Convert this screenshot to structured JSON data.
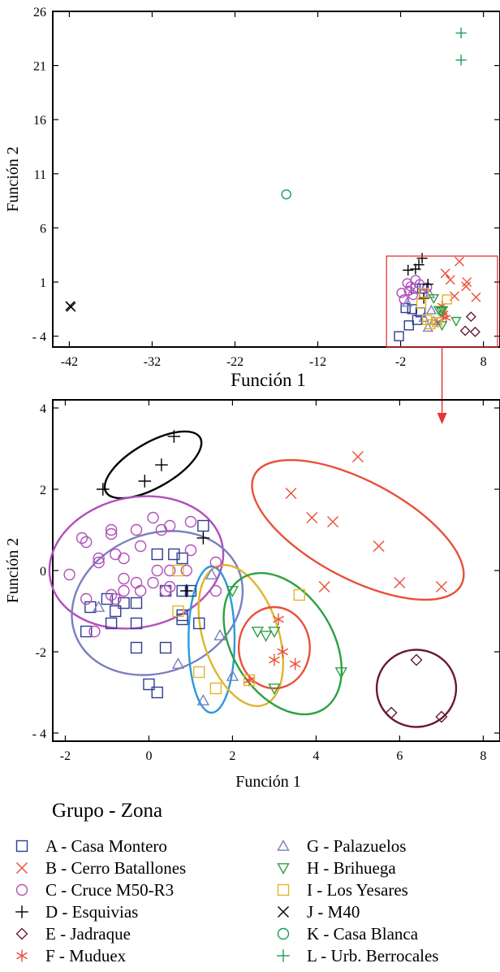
{
  "chart_data": [
    {
      "type": "scatter",
      "title": "",
      "xlabel": "Función 1",
      "ylabel": "Función 2",
      "xlim": [
        -44,
        10
      ],
      "ylim": [
        -5,
        26
      ],
      "xticks": [
        -42,
        -32,
        -22,
        -12,
        -2,
        8
      ],
      "xtick_labels": [
        "-42",
        "-32",
        "-22",
        "-12",
        "-2",
        "8"
      ],
      "yticks": [
        -4,
        1,
        6,
        11,
        16,
        21,
        26
      ],
      "ytick_labels": [
        "- 4",
        "1",
        "6",
        "11",
        "16",
        "21",
        "26"
      ],
      "grid": false,
      "zoom_box": {
        "x": [
          -3.7,
          9.7
        ],
        "y": [
          -5,
          3.4
        ],
        "color": "#e8343a"
      },
      "series": [
        {
          "name": "J - M40",
          "marker": "x",
          "color": "#000000",
          "points": [
            [
              -41.9,
              -1.2
            ],
            [
              -41.8,
              -1.3
            ]
          ]
        },
        {
          "name": "K - Casa Blanca",
          "marker": "circle",
          "color": "#15a05a",
          "points": [
            [
              -15.8,
              9.1
            ]
          ]
        },
        {
          "name": "L - Urb. Berrocales",
          "marker": "plus",
          "color": "#15a05a",
          "points": [
            [
              5.3,
              24.0
            ],
            [
              5.3,
              21.5
            ]
          ]
        },
        {
          "name": "A - Casa Montero",
          "marker": "square",
          "color": "#2e3d8f",
          "points": [
            [
              -0.2,
              0.4
            ],
            [
              0.6,
              0.4
            ],
            [
              -1.4,
              -1.4
            ],
            [
              -2.2,
              -4.0
            ],
            [
              -1.0,
              -3.0
            ],
            [
              -0.6,
              -1.5
            ],
            [
              0.0,
              -2.5
            ],
            [
              0.4,
              -1.8
            ]
          ]
        },
        {
          "name": "B - Cerro Batallones",
          "marker": "x",
          "color": "#e8503a",
          "points": [
            [
              5.1,
              2.9
            ],
            [
              3.4,
              1.8
            ],
            [
              4.0,
              1.2
            ],
            [
              6.0,
              1.0
            ],
            [
              7.1,
              -0.4
            ],
            [
              4.5,
              -0.3
            ],
            [
              5.9,
              0.6
            ]
          ]
        },
        {
          "name": "C - Cruce M50-R3",
          "marker": "circle",
          "color": "#b14fba",
          "points": [
            [
              -1.9,
              0.0
            ],
            [
              -1.2,
              0.9
            ],
            [
              -0.8,
              0.6
            ],
            [
              -0.2,
              1.2
            ],
            [
              0.3,
              0.8
            ],
            [
              -1.6,
              -0.6
            ],
            [
              -0.5,
              -0.2
            ],
            [
              0.8,
              -0.1
            ],
            [
              1.2,
              0.5
            ],
            [
              -1.0,
              0.2
            ]
          ]
        },
        {
          "name": "D - Esquivias",
          "marker": "plus",
          "color": "#000000",
          "points": [
            [
              -1.1,
              2.1
            ],
            [
              -0.2,
              2.2
            ],
            [
              0.2,
              2.6
            ],
            [
              0.6,
              3.2
            ],
            [
              1.3,
              0.8
            ],
            [
              0.8,
              -0.5
            ]
          ]
        },
        {
          "name": "E - Jadraque",
          "marker": "diamond",
          "color": "#6a1a30",
          "points": [
            [
              6.5,
              -2.2
            ],
            [
              5.8,
              -3.5
            ],
            [
              7.0,
              -3.6
            ]
          ]
        },
        {
          "name": "F - Muduex",
          "marker": "asterisk",
          "color": "#e8503a",
          "points": [
            [
              2.4,
              -2.7
            ],
            [
              3.1,
              -2.1
            ],
            [
              3.5,
              -2.3
            ],
            [
              3.0,
              -1.2
            ],
            [
              3.2,
              -1.9
            ]
          ]
        },
        {
          "name": "G - Palazuelos",
          "marker": "triangle",
          "color": "#7a7fc0",
          "points": [
            [
              1.5,
              -0.1
            ],
            [
              1.7,
              -1.6
            ],
            [
              2.0,
              -2.6
            ],
            [
              0.8,
              -2.3
            ],
            [
              1.3,
              -3.2
            ],
            [
              -1.2,
              -0.9
            ]
          ]
        },
        {
          "name": "H - Brihuega",
          "marker": "triangle-down",
          "color": "#2ea040",
          "points": [
            [
              2.6,
              -1.6
            ],
            [
              2.9,
              -1.7
            ],
            [
              3.1,
              -1.6
            ],
            [
              4.7,
              -2.6
            ],
            [
              3.0,
              -3.0
            ],
            [
              2.0,
              -0.5
            ]
          ]
        },
        {
          "name": "I - Los Yesares",
          "marker": "square",
          "color": "#e0b52c",
          "points": [
            [
              3.6,
              -0.6
            ],
            [
              1.2,
              -2.5
            ],
            [
              1.6,
              -2.9
            ],
            [
              0.8,
              0.0
            ],
            [
              2.4,
              -2.7
            ],
            [
              0.5,
              -1.0
            ]
          ]
        }
      ]
    },
    {
      "type": "scatter",
      "title": "",
      "xlabel": "Función 1",
      "ylabel": "Función 2",
      "xlim": [
        -2.3,
        8.4
      ],
      "ylim": [
        -4.2,
        4.2
      ],
      "xticks": [
        -2,
        0,
        2,
        4,
        6,
        8
      ],
      "xtick_labels": [
        "-2",
        "0",
        "2",
        "4",
        "6",
        "8"
      ],
      "yticks": [
        -4,
        -2,
        0,
        2,
        4
      ],
      "ytick_labels": [
        "- 4",
        "-2",
        "0",
        "2",
        "4"
      ],
      "grid": false,
      "legend_title": "Grupo - Zona",
      "legend_position": "bottom",
      "series": [
        {
          "name": "A - Casa Montero",
          "marker": "square",
          "color": "#2e3d8f",
          "points": [
            [
              0.2,
              0.4
            ],
            [
              0.6,
              0.4
            ],
            [
              1.3,
              1.1
            ],
            [
              -1.0,
              -0.7
            ],
            [
              -0.6,
              -0.8
            ],
            [
              -0.8,
              -1.0
            ],
            [
              -0.9,
              -1.3
            ],
            [
              -1.4,
              -0.9
            ],
            [
              -1.5,
              -1.5
            ],
            [
              -0.3,
              -0.8
            ],
            [
              -0.3,
              -1.3
            ],
            [
              0.4,
              -0.5
            ],
            [
              0.8,
              -0.5
            ],
            [
              1.0,
              -0.5
            ],
            [
              0.8,
              -1.1
            ],
            [
              0.8,
              -1.2
            ],
            [
              -0.3,
              -1.9
            ],
            [
              0.4,
              -1.9
            ],
            [
              1.2,
              -1.3
            ],
            [
              0.0,
              -2.8
            ],
            [
              0.2,
              -3.0
            ],
            [
              0.8,
              0.3
            ]
          ]
        },
        {
          "name": "B - Cerro Batallones",
          "marker": "x",
          "color": "#e8503a",
          "points": [
            [
              5.0,
              2.8
            ],
            [
              3.4,
              1.9
            ],
            [
              3.9,
              1.3
            ],
            [
              4.4,
              1.2
            ],
            [
              5.5,
              0.6
            ],
            [
              6.0,
              -0.3
            ],
            [
              7.0,
              -0.4
            ],
            [
              4.2,
              -0.4
            ]
          ]
        },
        {
          "name": "C - Cruce M50-R3",
          "marker": "circle",
          "color": "#b14fba",
          "points": [
            [
              -1.6,
              0.8
            ],
            [
              -1.5,
              0.7
            ],
            [
              -0.9,
              1.0
            ],
            [
              -0.9,
              0.9
            ],
            [
              -0.3,
              1.0
            ],
            [
              0.1,
              1.3
            ],
            [
              0.5,
              1.1
            ],
            [
              1.0,
              1.2
            ],
            [
              -1.9,
              -0.1
            ],
            [
              -1.2,
              0.2
            ],
            [
              -1.2,
              0.3
            ],
            [
              -0.8,
              0.4
            ],
            [
              -0.6,
              0.3
            ],
            [
              -0.2,
              0.6
            ],
            [
              0.3,
              1.0
            ],
            [
              0.2,
              0.0
            ],
            [
              0.5,
              0.0
            ],
            [
              1.0,
              0.5
            ],
            [
              1.6,
              0.2
            ],
            [
              -1.5,
              -0.7
            ],
            [
              -0.6,
              -0.2
            ],
            [
              -0.3,
              -0.3
            ],
            [
              -0.6,
              -0.5
            ],
            [
              0.5,
              -0.4
            ],
            [
              -0.9,
              -0.6
            ],
            [
              -0.8,
              -0.7
            ],
            [
              -0.2,
              -0.5
            ],
            [
              0.4,
              -0.5
            ],
            [
              1.6,
              -0.5
            ],
            [
              -1.3,
              -1.5
            ],
            [
              0.1,
              -0.3
            ],
            [
              0.9,
              0.0
            ]
          ]
        },
        {
          "name": "D - Esquivias",
          "marker": "plus",
          "color": "#000000",
          "points": [
            [
              -1.1,
              2.0
            ],
            [
              -0.1,
              2.2
            ],
            [
              0.3,
              2.6
            ],
            [
              0.6,
              3.3
            ],
            [
              1.3,
              0.8
            ],
            [
              0.9,
              -0.5
            ]
          ]
        },
        {
          "name": "E - Jadraque",
          "marker": "diamond",
          "color": "#6a1a30",
          "points": [
            [
              6.4,
              -2.2
            ],
            [
              5.8,
              -3.5
            ],
            [
              7.0,
              -3.6
            ]
          ]
        },
        {
          "name": "F - Muduex",
          "marker": "asterisk",
          "color": "#e8503a",
          "points": [
            [
              2.4,
              -2.7
            ],
            [
              3.0,
              -2.2
            ],
            [
              3.2,
              -2.0
            ],
            [
              3.5,
              -2.3
            ],
            [
              3.1,
              -1.2
            ]
          ]
        },
        {
          "name": "G - Palazuelos",
          "marker": "triangle",
          "color": "#7a7fc0",
          "points": [
            [
              1.5,
              -0.1
            ],
            [
              1.7,
              -1.6
            ],
            [
              2.0,
              -2.6
            ],
            [
              0.7,
              -2.3
            ],
            [
              1.3,
              -3.2
            ],
            [
              -1.2,
              -0.9
            ]
          ]
        },
        {
          "name": "H - Brihuega",
          "marker": "triangle-down",
          "color": "#2ea040",
          "points": [
            [
              2.6,
              -1.5
            ],
            [
              2.8,
              -1.6
            ],
            [
              3.0,
              -1.5
            ],
            [
              4.6,
              -2.5
            ],
            [
              3.0,
              -2.9
            ],
            [
              2.0,
              -0.5
            ]
          ]
        },
        {
          "name": "I - Los Yesares",
          "marker": "square",
          "color": "#e0b52c",
          "points": [
            [
              3.6,
              -0.6
            ],
            [
              1.2,
              -2.5
            ],
            [
              1.6,
              -2.9
            ],
            [
              0.7,
              0.0
            ],
            [
              2.4,
              -2.7
            ],
            [
              0.7,
              -1.0
            ]
          ]
        }
      ],
      "ellipses": [
        {
          "group": "D - Esquivias",
          "color": "#000000",
          "cx": 0.1,
          "cy": 2.6,
          "rx": 1.3,
          "ry": 0.55,
          "angle": 30
        },
        {
          "group": "B - Cerro Batallones",
          "color": "#e8503a",
          "cx": 5.0,
          "cy": 1.0,
          "rx": 2.8,
          "ry": 1.2,
          "angle": -28
        },
        {
          "group": "C - Cruce M50-R3",
          "color": "#b14fba",
          "cx": -0.3,
          "cy": 0.2,
          "rx": 2.1,
          "ry": 1.6,
          "angle": 12
        },
        {
          "group": "A - Casa Montero",
          "color": "#7a7fc0",
          "cx": 0.2,
          "cy": -0.8,
          "rx": 2.1,
          "ry": 1.7,
          "angle": 22
        },
        {
          "group": "G - Palazuelos",
          "color": "#2a9ad8",
          "cx": 1.5,
          "cy": -1.7,
          "rx": 0.55,
          "ry": 1.8,
          "angle": 0
        },
        {
          "group": "I - Los Yesares",
          "color": "#e0b52c",
          "cx": 2.2,
          "cy": -1.6,
          "rx": 0.9,
          "ry": 1.8,
          "angle": 18
        },
        {
          "group": "H - Brihuega",
          "color": "#2ea040",
          "cx": 3.2,
          "cy": -1.8,
          "rx": 1.2,
          "ry": 1.9,
          "angle": 32
        },
        {
          "group": "F - Muduex",
          "color": "#e8503a",
          "cx": 3.0,
          "cy": -1.9,
          "rx": 0.85,
          "ry": 1.0,
          "angle": 0
        },
        {
          "group": "E - Jadraque",
          "color": "#6a1a30",
          "cx": 6.4,
          "cy": -2.9,
          "rx": 0.95,
          "ry": 0.95,
          "angle": 0
        }
      ]
    }
  ],
  "legend": {
    "title": "Grupo - Zona",
    "items": [
      {
        "label": "A - Casa Montero",
        "marker": "square",
        "color": "#2e3d8f"
      },
      {
        "label": "B - Cerro Batallones",
        "marker": "x",
        "color": "#e8503a"
      },
      {
        "label": "C - Cruce M50-R3",
        "marker": "circle",
        "color": "#b14fba"
      },
      {
        "label": "D - Esquivias",
        "marker": "plus",
        "color": "#000000"
      },
      {
        "label": "E - Jadraque",
        "marker": "diamond",
        "color": "#6a1a30"
      },
      {
        "label": "F - Muduex",
        "marker": "asterisk",
        "color": "#e8503a"
      },
      {
        "label": "G - Palazuelos",
        "marker": "triangle",
        "color": "#7a7fc0"
      },
      {
        "label": "H - Brihuega",
        "marker": "triangle-down",
        "color": "#2ea040"
      },
      {
        "label": "I - Los Yesares",
        "marker": "square",
        "color": "#e0b52c"
      },
      {
        "label": "J - M40",
        "marker": "x",
        "color": "#000000"
      },
      {
        "label": "K - Casa Blanca",
        "marker": "circle",
        "color": "#15a05a"
      },
      {
        "label": "L - Urb. Berrocales",
        "marker": "plus",
        "color": "#15a05a"
      }
    ]
  },
  "zoom_arrow_color": "#e8343a"
}
